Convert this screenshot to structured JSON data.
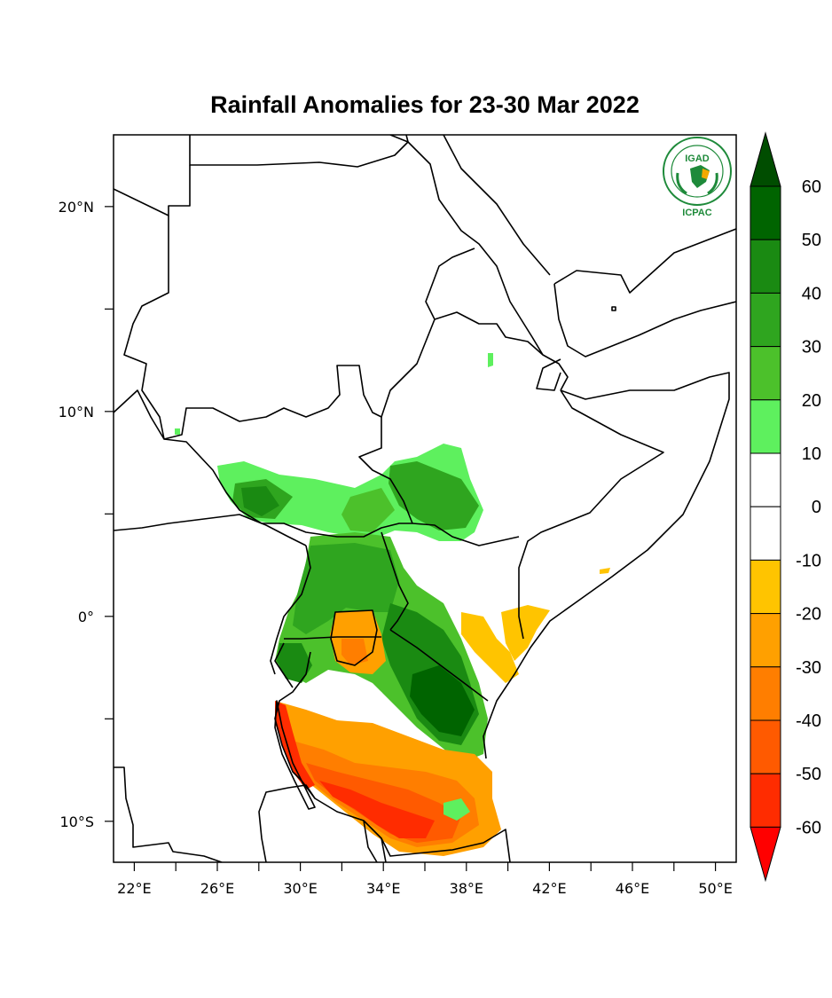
{
  "title": "Rainfall Anomalies for 23-30 Mar 2022",
  "logo": {
    "top_text": "IGAD",
    "bottom_text": "ICPAC",
    "color": "#1e8a3a",
    "accent": "#f2a900"
  },
  "map": {
    "lon_range": [
      21.0,
      51.0
    ],
    "lat_range": [
      -12.0,
      23.5
    ],
    "x_ticks": [
      {
        "value": 22,
        "label": "22°E"
      },
      {
        "value": 26,
        "label": "26°E"
      },
      {
        "value": 30,
        "label": "30°E"
      },
      {
        "value": 34,
        "label": "34°E"
      },
      {
        "value": 38,
        "label": "38°E"
      },
      {
        "value": 42,
        "label": "42°E"
      },
      {
        "value": 46,
        "label": "46°E"
      },
      {
        "value": 50,
        "label": "50°E"
      }
    ],
    "x_minor_ticks": [
      24,
      28,
      32,
      36,
      40,
      44,
      48
    ],
    "y_ticks": [
      {
        "value": 20,
        "label": "20°N"
      },
      {
        "value": 10,
        "label": "10°N"
      },
      {
        "value": 0,
        "label": "0°"
      },
      {
        "value": -10,
        "label": "10°S"
      }
    ],
    "y_minor_ticks": [
      15,
      5,
      -5
    ]
  },
  "colorbar": {
    "labels": [
      "60",
      "50",
      "40",
      "30",
      "20",
      "10",
      "0",
      "-10",
      "-20",
      "-30",
      "-40",
      "-50",
      "-60"
    ],
    "colors": [
      "#006400",
      "#1a8a12",
      "#2fa51f",
      "#4cc12b",
      "#5ef05e",
      "#ffffff",
      "#ffffff",
      "#ffc400",
      "#ffa000",
      "#ff7e00",
      "#ff5a00",
      "#ff2c00"
    ],
    "top_arrow_color": "#004d00",
    "bottom_arrow_color": "#ff0000"
  }
}
